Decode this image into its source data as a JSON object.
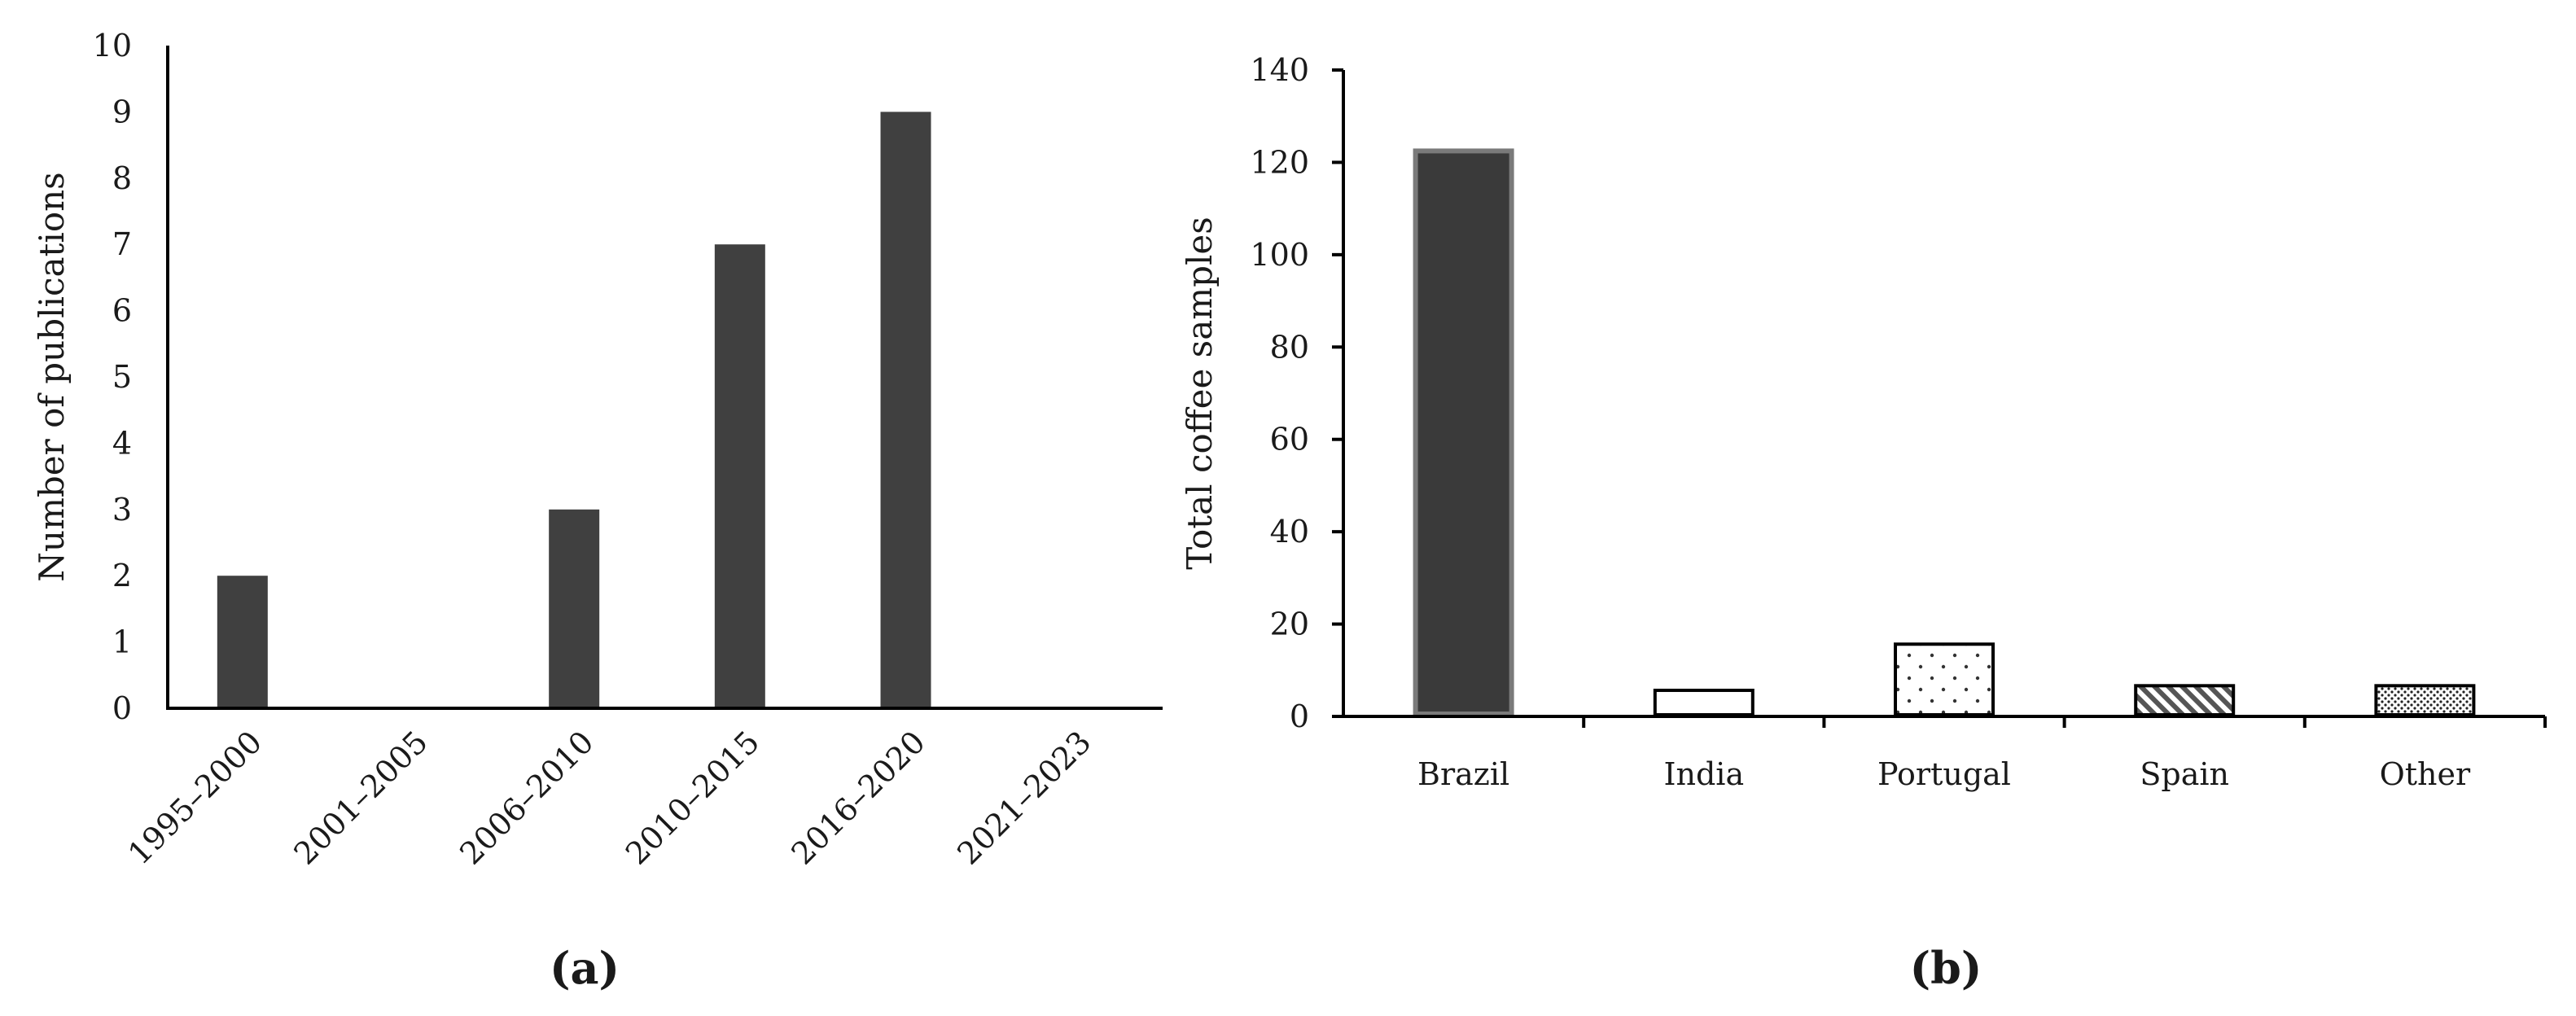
{
  "chart_data": [
    {
      "type": "bar",
      "panel_label": "(a)",
      "categories": [
        "1995–2000",
        "2001–2005",
        "2006–2010",
        "2010–2015",
        "2016–2020",
        "2021–2023"
      ],
      "values": [
        2,
        0,
        3,
        7,
        9,
        0
      ],
      "title": "",
      "xlabel": "",
      "ylabel": "Number of publications",
      "ylim": [
        0,
        10
      ],
      "yticks": [
        "0",
        "1",
        "2",
        "3",
        "4",
        "5",
        "6",
        "7",
        "8",
        "9",
        "10"
      ],
      "bar_color": "#404040",
      "grid": false,
      "legend": "none"
    },
    {
      "type": "bar",
      "panel_label": "(b)",
      "categories": [
        "Brazil",
        "India",
        "Portugal",
        "Spain",
        "Other"
      ],
      "values": [
        123,
        6,
        16,
        7,
        7
      ],
      "title": "",
      "xlabel": "",
      "ylabel": "Total coffee samples",
      "ylim": [
        0,
        140
      ],
      "yticks": [
        "0",
        "20",
        "40",
        "60",
        "80",
        "100",
        "120",
        "140"
      ],
      "bar_fills": [
        "solid-dark",
        "white",
        "dotted",
        "hatched",
        "dense-dotted"
      ],
      "bar_color": "#3a3a3a",
      "grid": false,
      "legend": "none"
    }
  ]
}
